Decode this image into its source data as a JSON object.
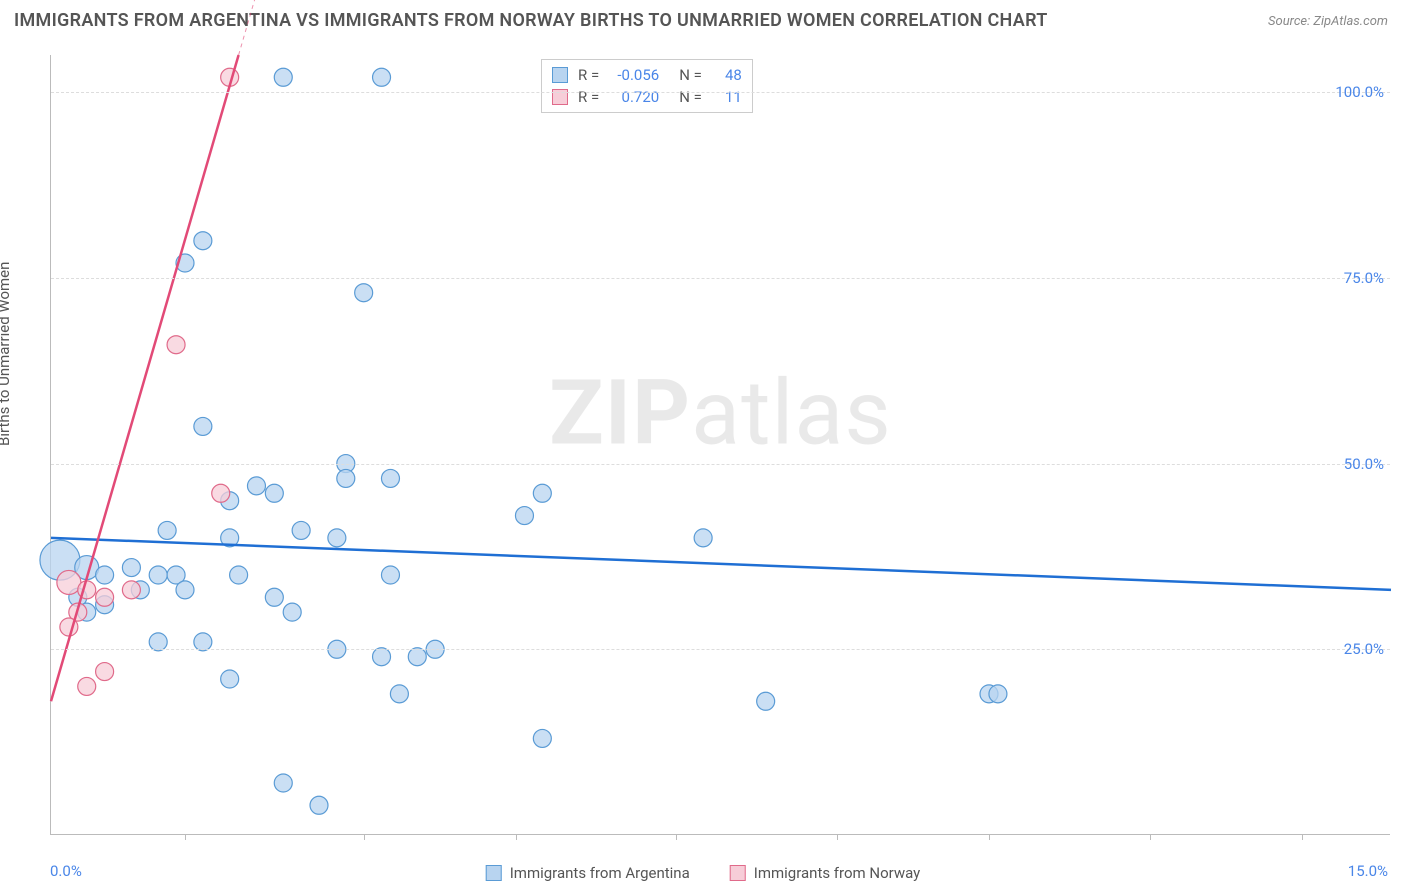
{
  "title": "IMMIGRANTS FROM ARGENTINA VS IMMIGRANTS FROM NORWAY BIRTHS TO UNMARRIED WOMEN CORRELATION CHART",
  "source": "Source: ZipAtlas.com",
  "watermark_zip": "ZIP",
  "watermark_atlas": "atlas",
  "chart": {
    "type": "scatter-correlation",
    "y_label": "Births to Unmarried Women",
    "x_min_label": "0.0%",
    "x_max_label": "15.0%",
    "xlim": [
      0,
      15
    ],
    "ylim": [
      0,
      105
    ],
    "y_ticks": [
      {
        "value": 25,
        "label": "25.0%"
      },
      {
        "value": 50,
        "label": "50.0%"
      },
      {
        "value": 75,
        "label": "75.0%"
      },
      {
        "value": 100,
        "label": "100.0%"
      }
    ],
    "x_tick_positions": [
      1.5,
      3.5,
      5.2,
      7.0,
      8.8,
      10.5,
      12.3,
      14.0
    ],
    "grid_color": "#dddddd",
    "axis_color": "#bbbbbb",
    "background_color": "#ffffff",
    "tick_label_color": "#4a86e8",
    "series": [
      {
        "name": "Immigrants from Argentina",
        "color_fill": "#b8d4f0",
        "color_stroke": "#5a9bd5",
        "marker_opacity": 0.75,
        "marker_r_default": 9,
        "R": "-0.056",
        "N": "48",
        "regression": {
          "x1": 0,
          "y1": 40,
          "x2": 15,
          "y2": 33,
          "color": "#1f6fd4",
          "width": 2.5
        },
        "points": [
          {
            "x": 2.6,
            "y": 102,
            "r": 9
          },
          {
            "x": 3.7,
            "y": 102,
            "r": 9
          },
          {
            "x": 1.7,
            "y": 80,
            "r": 9
          },
          {
            "x": 1.5,
            "y": 77,
            "r": 9
          },
          {
            "x": 3.5,
            "y": 73,
            "r": 9
          },
          {
            "x": 1.7,
            "y": 55,
            "r": 9
          },
          {
            "x": 3.3,
            "y": 50,
            "r": 9
          },
          {
            "x": 3.3,
            "y": 48,
            "r": 9
          },
          {
            "x": 3.8,
            "y": 48,
            "r": 9
          },
          {
            "x": 2.3,
            "y": 47,
            "r": 9
          },
          {
            "x": 2.5,
            "y": 46,
            "r": 9
          },
          {
            "x": 5.5,
            "y": 46,
            "r": 9
          },
          {
            "x": 5.3,
            "y": 43,
            "r": 9
          },
          {
            "x": 7.3,
            "y": 40,
            "r": 9
          },
          {
            "x": 1.3,
            "y": 41,
            "r": 9
          },
          {
            "x": 2.8,
            "y": 41,
            "r": 9
          },
          {
            "x": 2.0,
            "y": 40,
            "r": 9
          },
          {
            "x": 3.2,
            "y": 40,
            "r": 9
          },
          {
            "x": 0.1,
            "y": 37,
            "r": 20
          },
          {
            "x": 0.4,
            "y": 36,
            "r": 12
          },
          {
            "x": 0.6,
            "y": 35,
            "r": 9
          },
          {
            "x": 0.9,
            "y": 36,
            "r": 9
          },
          {
            "x": 1.2,
            "y": 35,
            "r": 9
          },
          {
            "x": 1.4,
            "y": 35,
            "r": 9
          },
          {
            "x": 1.0,
            "y": 33,
            "r": 9
          },
          {
            "x": 1.5,
            "y": 33,
            "r": 9
          },
          {
            "x": 2.1,
            "y": 35,
            "r": 9
          },
          {
            "x": 3.8,
            "y": 35,
            "r": 9
          },
          {
            "x": 0.3,
            "y": 32,
            "r": 9
          },
          {
            "x": 0.6,
            "y": 31,
            "r": 9
          },
          {
            "x": 0.4,
            "y": 30,
            "r": 9
          },
          {
            "x": 2.5,
            "y": 32,
            "r": 9
          },
          {
            "x": 2.7,
            "y": 30,
            "r": 9
          },
          {
            "x": 1.2,
            "y": 26,
            "r": 9
          },
          {
            "x": 1.7,
            "y": 26,
            "r": 9
          },
          {
            "x": 2.0,
            "y": 21,
            "r": 9
          },
          {
            "x": 3.2,
            "y": 25,
            "r": 9
          },
          {
            "x": 3.7,
            "y": 24,
            "r": 9
          },
          {
            "x": 4.1,
            "y": 24,
            "r": 9
          },
          {
            "x": 4.3,
            "y": 25,
            "r": 9
          },
          {
            "x": 3.9,
            "y": 19,
            "r": 9
          },
          {
            "x": 5.5,
            "y": 13,
            "r": 9
          },
          {
            "x": 8.0,
            "y": 18,
            "r": 9
          },
          {
            "x": 10.5,
            "y": 19,
            "r": 9
          },
          {
            "x": 10.6,
            "y": 19,
            "r": 9
          },
          {
            "x": 2.6,
            "y": 7,
            "r": 9
          },
          {
            "x": 3.0,
            "y": 4,
            "r": 9
          },
          {
            "x": 2.0,
            "y": 45,
            "r": 9
          }
        ]
      },
      {
        "name": "Immigrants from Norway",
        "color_fill": "#f7cdd8",
        "color_stroke": "#e06a8a",
        "marker_opacity": 0.75,
        "marker_r_default": 9,
        "R": "0.720",
        "N": "11",
        "regression": {
          "x1": 0,
          "y1": 18,
          "x2": 2.1,
          "y2": 105,
          "color": "#e24a77",
          "width": 2.5,
          "dash_extend_to_x": 3.0
        },
        "points": [
          {
            "x": 2.0,
            "y": 102,
            "r": 9
          },
          {
            "x": 1.4,
            "y": 66,
            "r": 9
          },
          {
            "x": 1.9,
            "y": 46,
            "r": 9
          },
          {
            "x": 0.2,
            "y": 34,
            "r": 12
          },
          {
            "x": 0.4,
            "y": 33,
            "r": 9
          },
          {
            "x": 0.6,
            "y": 32,
            "r": 9
          },
          {
            "x": 0.3,
            "y": 30,
            "r": 9
          },
          {
            "x": 0.9,
            "y": 33,
            "r": 9
          },
          {
            "x": 0.2,
            "y": 28,
            "r": 9
          },
          {
            "x": 0.6,
            "y": 22,
            "r": 9
          },
          {
            "x": 0.4,
            "y": 20,
            "r": 9
          }
        ]
      }
    ],
    "legend_top": {
      "r_label": "R =",
      "n_label": "N ="
    }
  }
}
